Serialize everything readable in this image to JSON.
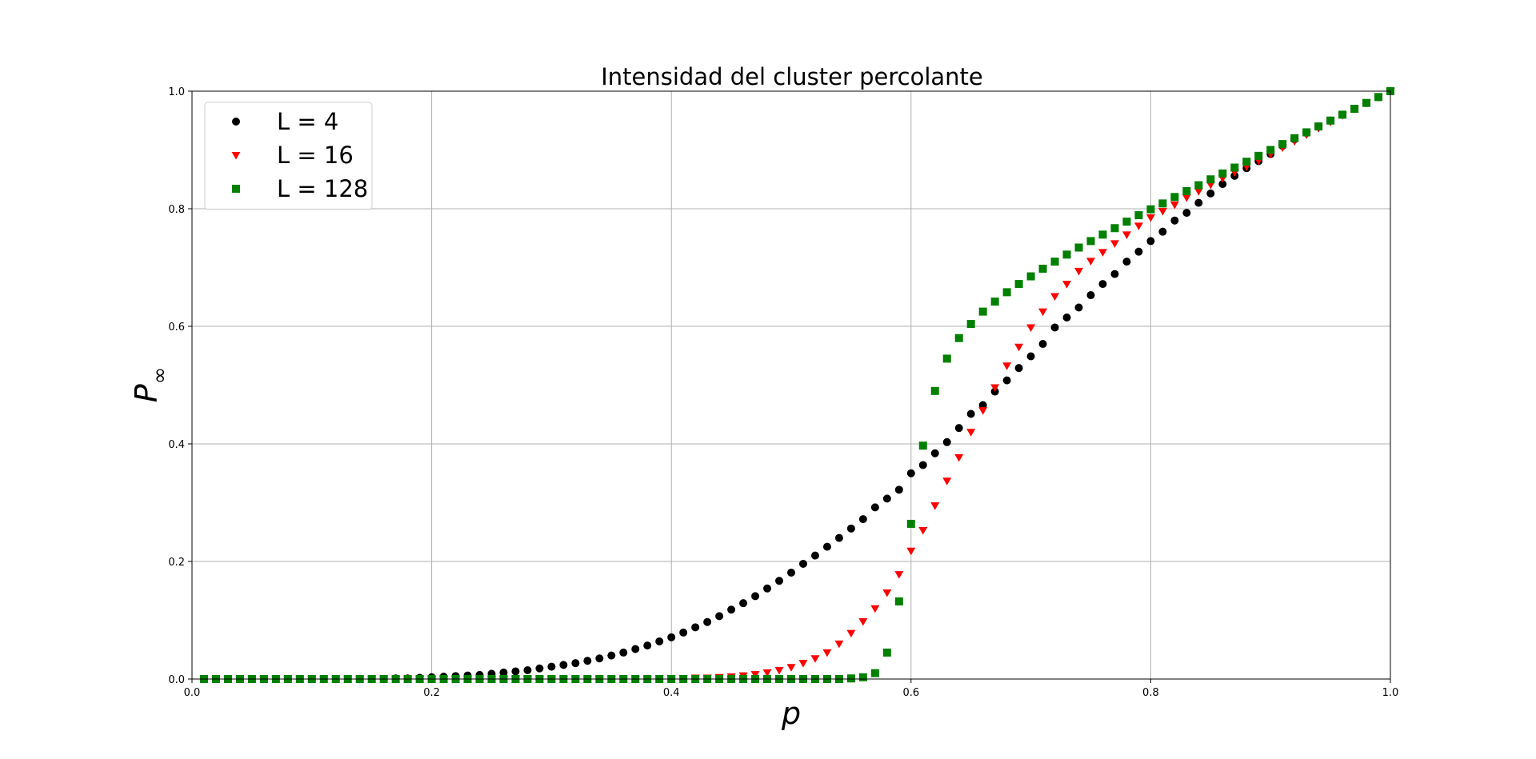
{
  "chart_data": {
    "type": "scatter",
    "title": "Intensidad del cluster percolante",
    "xlabel": "p",
    "ylabel": "P",
    "ylabel_subscript": "∞",
    "xlim": [
      0.0,
      1.0
    ],
    "ylim": [
      0.0,
      1.0
    ],
    "xticks": [
      "0.0",
      "0.2",
      "0.4",
      "0.6",
      "0.8",
      "1.0"
    ],
    "yticks": [
      "0.0",
      "0.2",
      "0.4",
      "0.6",
      "0.8",
      "1.0"
    ],
    "grid": true,
    "legend_position": "top-left",
    "x": [
      0.01,
      0.02,
      0.03,
      0.04,
      0.05,
      0.06,
      0.07,
      0.08,
      0.09,
      0.1,
      0.11,
      0.12,
      0.13,
      0.14,
      0.15,
      0.16,
      0.17,
      0.18,
      0.19,
      0.2,
      0.21,
      0.22,
      0.23,
      0.24,
      0.25,
      0.26,
      0.27,
      0.28,
      0.29,
      0.3,
      0.31,
      0.32,
      0.33,
      0.34,
      0.35,
      0.36,
      0.37,
      0.38,
      0.39,
      0.4,
      0.41,
      0.42,
      0.43,
      0.44,
      0.45,
      0.46,
      0.47,
      0.48,
      0.49,
      0.5,
      0.51,
      0.52,
      0.53,
      0.54,
      0.55,
      0.56,
      0.57,
      0.58,
      0.59,
      0.6,
      0.61,
      0.62,
      0.63,
      0.64,
      0.65,
      0.66,
      0.67,
      0.68,
      0.69,
      0.7,
      0.71,
      0.72,
      0.73,
      0.74,
      0.75,
      0.76,
      0.77,
      0.78,
      0.79,
      0.8,
      0.81,
      0.82,
      0.83,
      0.84,
      0.85,
      0.86,
      0.87,
      0.88,
      0.89,
      0.9,
      0.91,
      0.92,
      0.93,
      0.94,
      0.95,
      0.96,
      0.97,
      0.98,
      0.99,
      1.0
    ],
    "series": [
      {
        "name": "L = 4",
        "marker": "circle",
        "color": "#000000",
        "values": [
          0.0,
          0.0,
          0.0,
          0.0,
          0.0,
          0.0,
          0.0,
          0.0,
          0.0,
          0.0,
          0.0,
          0.0,
          0.0,
          0.0,
          0.0,
          0.0,
          0.001,
          0.001,
          0.002,
          0.003,
          0.004,
          0.005,
          0.006,
          0.007,
          0.009,
          0.011,
          0.013,
          0.015,
          0.018,
          0.021,
          0.024,
          0.027,
          0.031,
          0.035,
          0.04,
          0.045,
          0.051,
          0.057,
          0.064,
          0.071,
          0.079,
          0.088,
          0.097,
          0.107,
          0.118,
          0.129,
          0.141,
          0.154,
          0.167,
          0.181,
          0.196,
          0.21,
          0.225,
          0.24,
          0.256,
          0.272,
          0.292,
          0.307,
          0.322,
          0.35,
          0.364,
          0.384,
          0.403,
          0.427,
          0.451,
          0.466,
          0.489,
          0.508,
          0.529,
          0.549,
          0.57,
          0.598,
          0.615,
          0.632,
          0.653,
          0.672,
          0.689,
          0.71,
          0.727,
          0.745,
          0.761,
          0.78,
          0.793,
          0.81,
          0.826,
          0.842,
          0.856,
          0.869,
          0.881,
          0.893,
          0.907,
          0.918,
          0.929,
          0.94,
          0.95,
          0.96,
          0.97,
          0.98,
          0.99,
          1.0
        ]
      },
      {
        "name": "L = 16",
        "marker": "triangle-down",
        "color": "#ff0000",
        "values": [
          0.0,
          0.0,
          0.0,
          0.0,
          0.0,
          0.0,
          0.0,
          0.0,
          0.0,
          0.0,
          0.0,
          0.0,
          0.0,
          0.0,
          0.0,
          0.0,
          0.0,
          0.0,
          0.0,
          0.0,
          0.0,
          0.0,
          0.0,
          0.0,
          0.0,
          0.0,
          0.0,
          0.0,
          0.0,
          0.0,
          0.0,
          0.0,
          0.0,
          0.0,
          0.0,
          0.0,
          0.0,
          0.0,
          0.001,
          0.001,
          0.001,
          0.002,
          0.002,
          0.003,
          0.004,
          0.006,
          0.008,
          0.011,
          0.015,
          0.02,
          0.027,
          0.035,
          0.045,
          0.06,
          0.078,
          0.098,
          0.12,
          0.147,
          0.178,
          0.218,
          0.253,
          0.295,
          0.337,
          0.377,
          0.42,
          0.457,
          0.496,
          0.533,
          0.565,
          0.598,
          0.625,
          0.651,
          0.672,
          0.694,
          0.711,
          0.726,
          0.741,
          0.756,
          0.771,
          0.785,
          0.796,
          0.807,
          0.819,
          0.83,
          0.841,
          0.852,
          0.862,
          0.872,
          0.882,
          0.893,
          0.904,
          0.915,
          0.926,
          0.937,
          0.948,
          0.959,
          0.97,
          0.98,
          0.99,
          1.0
        ]
      },
      {
        "name": "L = 128",
        "marker": "square",
        "color": "#008000",
        "values": [
          0.0,
          0.0,
          0.0,
          0.0,
          0.0,
          0.0,
          0.0,
          0.0,
          0.0,
          0.0,
          0.0,
          0.0,
          0.0,
          0.0,
          0.0,
          0.0,
          0.0,
          0.0,
          0.0,
          0.0,
          0.0,
          0.0,
          0.0,
          0.0,
          0.0,
          0.0,
          0.0,
          0.0,
          0.0,
          0.0,
          0.0,
          0.0,
          0.0,
          0.0,
          0.0,
          0.0,
          0.0,
          0.0,
          0.0,
          0.0,
          0.0,
          0.0,
          0.0,
          0.0,
          0.0,
          0.0,
          0.0,
          0.0,
          0.0,
          0.0,
          0.0,
          0.0,
          0.0,
          0.0,
          0.001,
          0.003,
          0.01,
          0.045,
          0.132,
          0.264,
          0.397,
          0.49,
          0.545,
          0.58,
          0.604,
          0.625,
          0.642,
          0.658,
          0.672,
          0.685,
          0.698,
          0.71,
          0.722,
          0.734,
          0.745,
          0.756,
          0.767,
          0.778,
          0.789,
          0.799,
          0.809,
          0.82,
          0.83,
          0.84,
          0.85,
          0.86,
          0.87,
          0.88,
          0.89,
          0.9,
          0.91,
          0.92,
          0.93,
          0.94,
          0.95,
          0.96,
          0.97,
          0.98,
          0.99,
          1.0
        ]
      }
    ]
  }
}
